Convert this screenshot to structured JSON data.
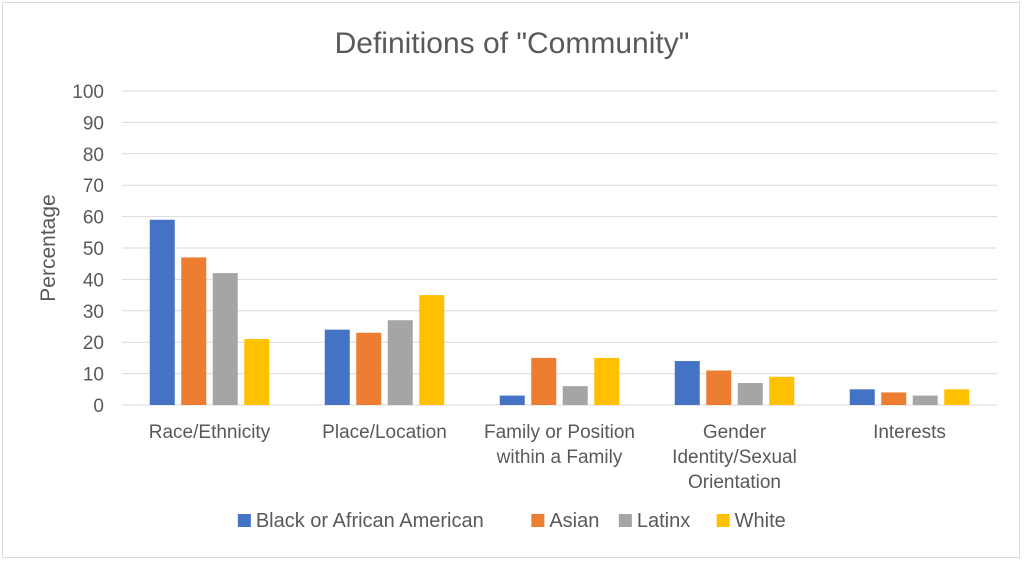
{
  "chart_data": {
    "type": "bar",
    "title": "Definitions of \"Community\"",
    "xlabel": "",
    "ylabel": "Percentage",
    "ylim": [
      0,
      100
    ],
    "yticks": [
      0,
      10,
      20,
      30,
      40,
      50,
      60,
      70,
      80,
      90,
      100
    ],
    "grid": true,
    "legend_position": "bottom",
    "categories": [
      [
        "Race/Ethnicity"
      ],
      [
        "Place/Location"
      ],
      [
        "Family or Position",
        "within a Family"
      ],
      [
        "Gender",
        "Identity/Sexual",
        "Orientation"
      ],
      [
        "Interests"
      ]
    ],
    "series": [
      {
        "name": "Black or African American",
        "color": "#4472c4",
        "values": [
          59,
          24,
          3,
          14,
          5
        ]
      },
      {
        "name": "Asian",
        "color": "#ed7d31",
        "values": [
          47,
          23,
          15,
          11,
          4
        ]
      },
      {
        "name": "Latinx",
        "color": "#a5a5a5",
        "values": [
          42,
          27,
          6,
          7,
          3
        ]
      },
      {
        "name": "White",
        "color": "#ffc000",
        "values": [
          21,
          35,
          15,
          9,
          5
        ]
      }
    ]
  }
}
